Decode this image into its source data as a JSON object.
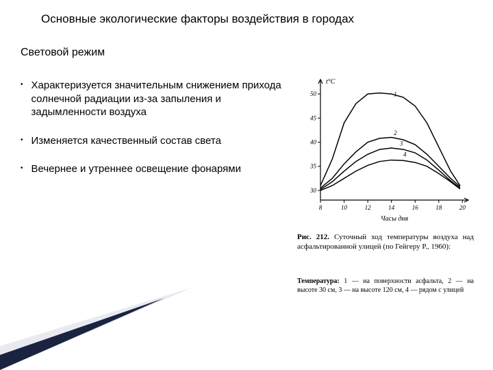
{
  "title": "Основные экологические факторы воздействия в городах",
  "subtitle": "Световой режим",
  "bullets": [
    "Характеризуется значительным снижением прихода солнечной радиации из-за запыления и задымленности воздуха",
    "Изменяется качественный состав света",
    "Вечернее и утреннее освещение фонарями"
  ],
  "chart": {
    "type": "line",
    "ylabel": "t°C",
    "xlabel": "Часы дня",
    "x_ticks": [
      8,
      10,
      12,
      14,
      16,
      18,
      20
    ],
    "y_ticks": [
      30,
      35,
      40,
      45,
      50
    ],
    "xlim": [
      8,
      20.5
    ],
    "ylim": [
      28,
      53
    ],
    "line_color": "#000000",
    "background_color": "#ffffff",
    "axis_color": "#000000",
    "line_width": 1.5,
    "font_size": 9,
    "series": [
      {
        "label": "1",
        "label_x": 14.2,
        "label_y": 49.5,
        "data": [
          [
            8,
            31.0
          ],
          [
            9,
            36.5
          ],
          [
            10,
            44.0
          ],
          [
            11,
            48.0
          ],
          [
            12,
            50.0
          ],
          [
            13,
            50.2
          ],
          [
            14,
            50.0
          ],
          [
            15,
            49.3
          ],
          [
            16,
            47.5
          ],
          [
            17,
            44.0
          ],
          [
            18,
            39.0
          ],
          [
            19,
            34.0
          ],
          [
            19.8,
            31.0
          ]
        ]
      },
      {
        "label": "2",
        "label_x": 14.2,
        "label_y": 41.5,
        "data": [
          [
            8,
            30.5
          ],
          [
            9,
            32.5
          ],
          [
            10,
            35.5
          ],
          [
            11,
            38.0
          ],
          [
            12,
            40.0
          ],
          [
            13,
            40.8
          ],
          [
            14,
            41.0
          ],
          [
            15,
            40.5
          ],
          [
            16,
            39.5
          ],
          [
            17,
            37.5
          ],
          [
            18,
            35.0
          ],
          [
            19,
            32.5
          ],
          [
            19.8,
            30.8
          ]
        ]
      },
      {
        "label": "3",
        "label_x": 14.7,
        "label_y": 39.3,
        "data": [
          [
            8,
            30.2
          ],
          [
            9,
            31.8
          ],
          [
            10,
            34.0
          ],
          [
            11,
            36.0
          ],
          [
            12,
            37.5
          ],
          [
            13,
            38.5
          ],
          [
            14,
            38.8
          ],
          [
            15,
            38.5
          ],
          [
            16,
            37.8
          ],
          [
            17,
            36.3
          ],
          [
            18,
            34.2
          ],
          [
            19,
            32.0
          ],
          [
            19.8,
            30.5
          ]
        ]
      },
      {
        "label": "4",
        "label_x": 15.0,
        "label_y": 37.0,
        "data": [
          [
            8,
            30.0
          ],
          [
            9,
            31.0
          ],
          [
            10,
            32.5
          ],
          [
            11,
            34.0
          ],
          [
            12,
            35.2
          ],
          [
            13,
            36.0
          ],
          [
            14,
            36.3
          ],
          [
            15,
            36.2
          ],
          [
            16,
            35.8
          ],
          [
            17,
            35.0
          ],
          [
            18,
            33.5
          ],
          [
            19,
            31.8
          ],
          [
            19.8,
            30.3
          ]
        ]
      }
    ]
  },
  "caption1_prefix": "Рис. 212.",
  "caption1_text": " Суточный ход температуры воздуха над асфальтированной улицей (по Гейгеру Р., 1960):",
  "caption2_prefix": "Температура:",
  "caption2_text": " 1 — на поверхности асфальта, 2 — на высоте 30 см, 3 — на высоте 120 см, 4 — рядом с улицей",
  "decor": {
    "colors": {
      "dark": "#1a2340",
      "light": "#e8eaf0"
    }
  }
}
